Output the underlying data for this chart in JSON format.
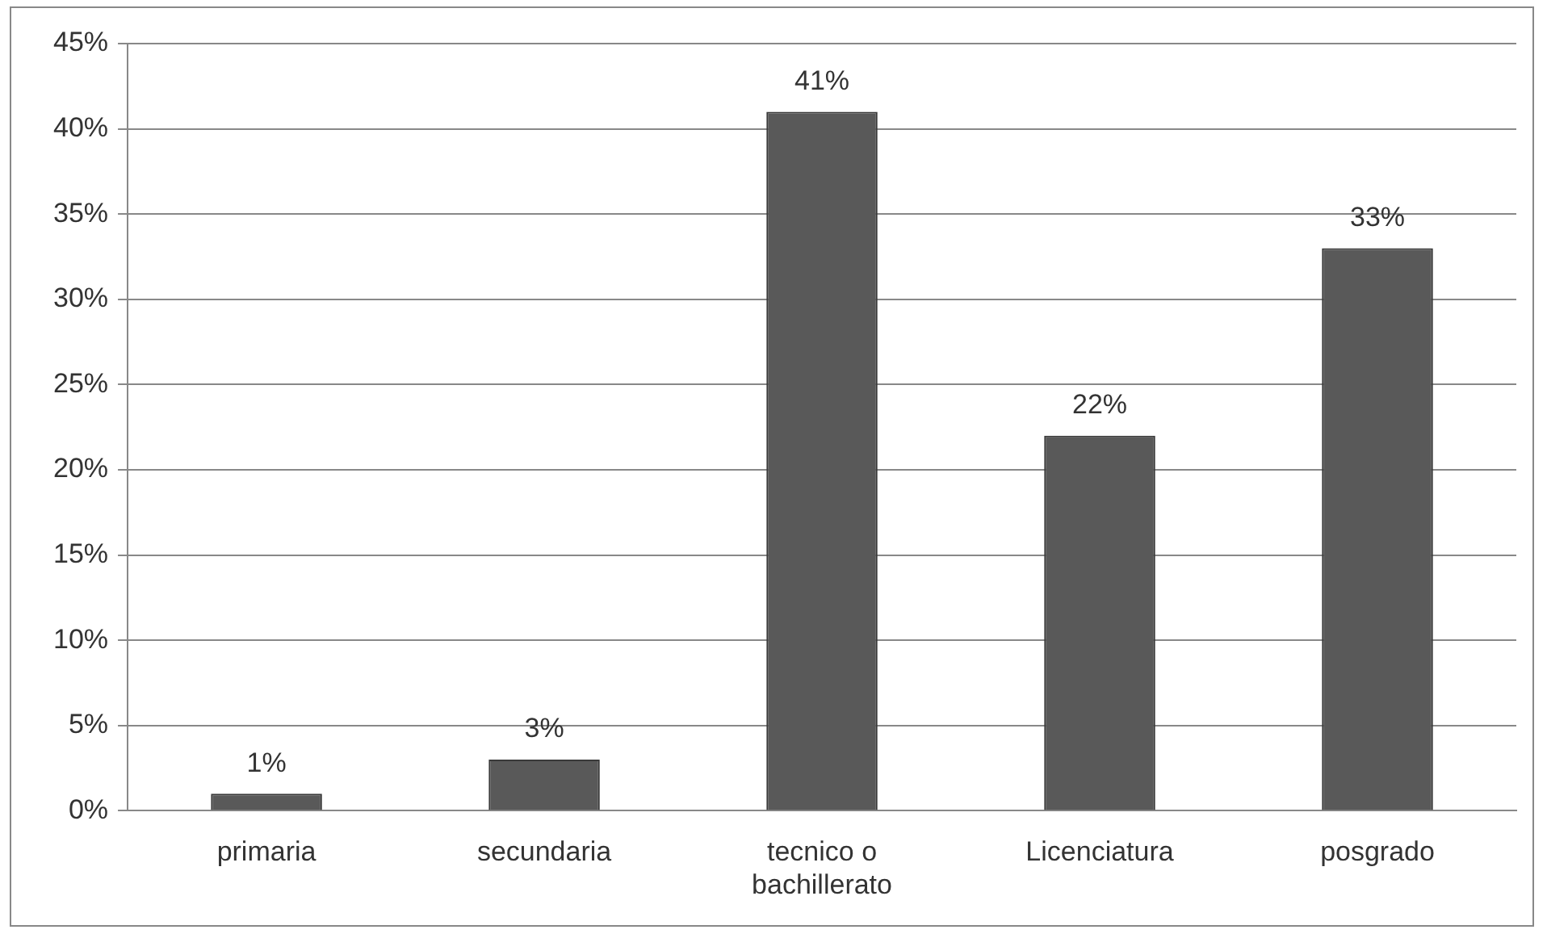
{
  "chart_data": {
    "type": "bar",
    "categories": [
      "primaria",
      "secundaria",
      "tecnico o bachillerato",
      "Licenciatura",
      "posgrado"
    ],
    "values": [
      1,
      3,
      41,
      22,
      33
    ],
    "value_labels": [
      "1%",
      "3%",
      "41%",
      "22%",
      "33%"
    ],
    "color": "#595959",
    "ylim": [
      0,
      45
    ],
    "yticks": [
      {
        "value": 0,
        "label": "0%"
      },
      {
        "value": 5,
        "label": "5%"
      },
      {
        "value": 10,
        "label": "10%"
      },
      {
        "value": 15,
        "label": "15%"
      },
      {
        "value": 20,
        "label": "20%"
      },
      {
        "value": 25,
        "label": "25%"
      },
      {
        "value": 30,
        "label": "30%"
      },
      {
        "value": 35,
        "label": "35%"
      },
      {
        "value": 40,
        "label": "40%"
      },
      {
        "value": 45,
        "label": "45%"
      }
    ],
    "grid": "y",
    "legend": false
  }
}
